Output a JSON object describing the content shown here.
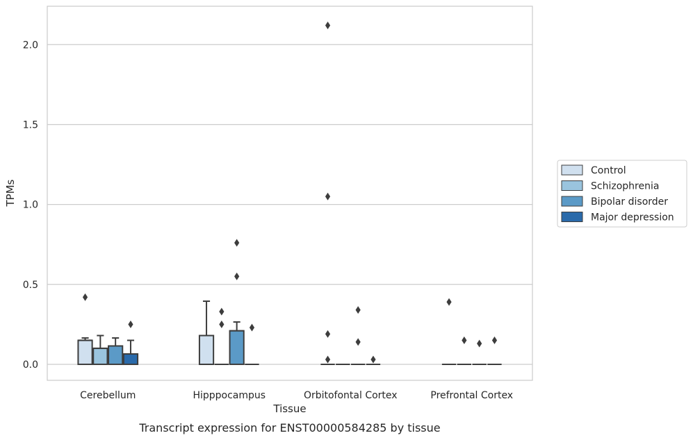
{
  "chart_data": {
    "type": "box",
    "xlabel": "Tissue",
    "ylabel": "TPMs",
    "caption": "Transcript expression for ENST00000584285 by tissue",
    "ylim": [
      -0.1,
      2.24
    ],
    "yticks": [
      0.0,
      0.5,
      1.0,
      1.5,
      2.0
    ],
    "ytick_labels": [
      "0.0",
      "0.5",
      "1.0",
      "1.5",
      "2.0"
    ],
    "grid": "horizontal",
    "legend_position": "right",
    "categories": [
      "Cerebellum",
      "Hipppocampus",
      "Orbitofontal Cortex",
      "Prefrontal Cortex"
    ],
    "series": [
      {
        "name": "Control",
        "color": "#d0e0ef",
        "boxes": [
          {
            "q1": 0.0,
            "median": 0.15,
            "q3": 0.15,
            "whisker_low": 0.0,
            "whisker_high": 0.165,
            "outliers": [
              0.42
            ]
          },
          {
            "q1": 0.0,
            "median": 0.0,
            "q3": 0.18,
            "whisker_low": 0.0,
            "whisker_high": 0.395,
            "outliers": []
          },
          {
            "q1": 0.0,
            "median": 0.0,
            "q3": 0.0,
            "whisker_low": 0.0,
            "whisker_high": 0.0,
            "outliers": [
              2.12,
              1.05,
              0.19,
              0.03
            ]
          },
          {
            "q1": 0.0,
            "median": 0.0,
            "q3": 0.0,
            "whisker_low": 0.0,
            "whisker_high": 0.0,
            "outliers": [
              0.39
            ]
          }
        ]
      },
      {
        "name": "Schizophrenia",
        "color": "#9ac4de",
        "boxes": [
          {
            "q1": 0.0,
            "median": 0.1,
            "q3": 0.1,
            "whisker_low": 0.0,
            "whisker_high": 0.18,
            "outliers": []
          },
          {
            "q1": 0.0,
            "median": 0.0,
            "q3": 0.0,
            "whisker_low": 0.0,
            "whisker_high": 0.0,
            "outliers": [
              0.33,
              0.25
            ]
          },
          {
            "q1": 0.0,
            "median": 0.0,
            "q3": 0.0,
            "whisker_low": 0.0,
            "whisker_high": 0.0,
            "outliers": []
          },
          {
            "q1": 0.0,
            "median": 0.0,
            "q3": 0.0,
            "whisker_low": 0.0,
            "whisker_high": 0.0,
            "outliers": [
              0.15
            ]
          }
        ]
      },
      {
        "name": "Bipolar disorder",
        "color": "#5b9ac7",
        "boxes": [
          {
            "q1": 0.0,
            "median": 0.115,
            "q3": 0.115,
            "whisker_low": 0.0,
            "whisker_high": 0.165,
            "outliers": []
          },
          {
            "q1": 0.0,
            "median": 0.21,
            "q3": 0.21,
            "whisker_low": 0.0,
            "whisker_high": 0.265,
            "outliers": [
              0.76,
              0.55
            ]
          },
          {
            "q1": 0.0,
            "median": 0.0,
            "q3": 0.0,
            "whisker_low": 0.0,
            "whisker_high": 0.0,
            "outliers": [
              0.34,
              0.14
            ]
          },
          {
            "q1": 0.0,
            "median": 0.0,
            "q3": 0.0,
            "whisker_low": 0.0,
            "whisker_high": 0.0,
            "outliers": [
              0.13
            ]
          }
        ]
      },
      {
        "name": "Major depression",
        "color": "#2a6aaa",
        "boxes": [
          {
            "q1": 0.0,
            "median": 0.065,
            "q3": 0.065,
            "whisker_low": 0.0,
            "whisker_high": 0.15,
            "outliers": [
              0.25
            ]
          },
          {
            "q1": 0.0,
            "median": 0.0,
            "q3": 0.0,
            "whisker_low": 0.0,
            "whisker_high": 0.0,
            "outliers": [
              0.23
            ]
          },
          {
            "q1": 0.0,
            "median": 0.0,
            "q3": 0.0,
            "whisker_low": 0.0,
            "whisker_high": 0.0,
            "outliers": [
              0.03
            ]
          },
          {
            "q1": 0.0,
            "median": 0.0,
            "q3": 0.0,
            "whisker_low": 0.0,
            "whisker_high": 0.0,
            "outliers": [
              0.15
            ]
          }
        ]
      }
    ]
  }
}
